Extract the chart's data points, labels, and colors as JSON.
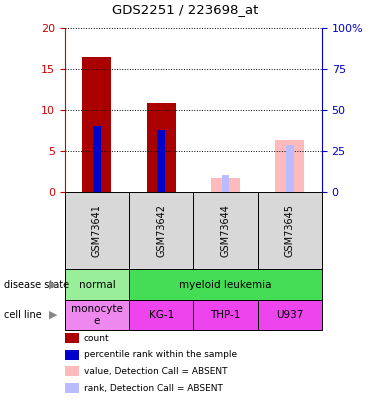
{
  "title": "GDS2251 / 223698_at",
  "samples": [
    "GSM73641",
    "GSM73642",
    "GSM73644",
    "GSM73645"
  ],
  "count_values": [
    16.5,
    10.9,
    0,
    0
  ],
  "rank_values": [
    8.1,
    7.6,
    0,
    0
  ],
  "absent_value_values": [
    0,
    0,
    1.8,
    6.4
  ],
  "absent_rank_values": [
    0,
    0,
    2.1,
    5.8
  ],
  "count_color": "#aa0000",
  "rank_color": "#0000cc",
  "absent_value_color": "#ffbbbb",
  "absent_rank_color": "#bbbbff",
  "ylim_left": [
    0,
    20
  ],
  "ylim_right": [
    0,
    100
  ],
  "yticks_left": [
    0,
    5,
    10,
    15,
    20
  ],
  "yticks_right": [
    0,
    25,
    50,
    75,
    100
  ],
  "ytick_labels_right": [
    "0",
    "25",
    "50",
    "75",
    "100%"
  ],
  "ytick_labels_left": [
    "0",
    "5",
    "10",
    "15",
    "20"
  ],
  "bar_width": 0.45,
  "rank_bar_width": 0.12,
  "grid_linestyle": "dotted",
  "bg_color": "#d8d8d8",
  "plot_bg": "#ffffff",
  "left_axis_color": "#cc0000",
  "right_axis_color": "#0000cc",
  "normal_color": "#99ee99",
  "leukemia_color": "#44dd55",
  "cell_normal_color": "#ee88ee",
  "cell_leukemia_color": "#ee44ee",
  "legend_items": [
    {
      "color": "#aa0000",
      "label": "count"
    },
    {
      "color": "#0000cc",
      "label": "percentile rank within the sample"
    },
    {
      "color": "#ffbbbb",
      "label": "value, Detection Call = ABSENT"
    },
    {
      "color": "#bbbbff",
      "label": "rank, Detection Call = ABSENT"
    }
  ]
}
